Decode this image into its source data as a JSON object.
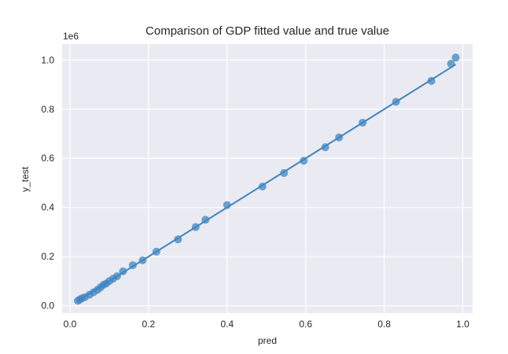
{
  "chart_data": {
    "type": "scatter",
    "title": "Comparison of GDP fitted value and true value",
    "xlabel": "pred",
    "ylabel": "y_test",
    "y_offset_label": "1e6",
    "xlim": [
      -0.02,
      1.025
    ],
    "ylim": [
      -0.03,
      1.065
    ],
    "xticks": [
      0.0,
      0.2,
      0.4,
      0.6,
      0.8,
      1.0
    ],
    "xtick_labels": [
      "0.0",
      "0.2",
      "0.4",
      "0.6",
      "0.8",
      "1.0"
    ],
    "yticks": [
      0.0,
      0.2,
      0.4,
      0.6,
      0.8,
      1.0
    ],
    "ytick_labels": [
      "0.0",
      "0.2",
      "0.4",
      "0.6",
      "0.8",
      "1.0"
    ],
    "grid": true,
    "style": {
      "plot_background": "#eaeaf2",
      "grid_color": "#ffffff",
      "marker_color": "#3e86c0",
      "line_color": "#3e86c0"
    },
    "points": [
      {
        "x": 0.02,
        "y": 0.02
      },
      {
        "x": 0.025,
        "y": 0.025
      },
      {
        "x": 0.03,
        "y": 0.03
      },
      {
        "x": 0.038,
        "y": 0.035
      },
      {
        "x": 0.05,
        "y": 0.045
      },
      {
        "x": 0.06,
        "y": 0.055
      },
      {
        "x": 0.07,
        "y": 0.065
      },
      {
        "x": 0.078,
        "y": 0.075
      },
      {
        "x": 0.085,
        "y": 0.085
      },
      {
        "x": 0.092,
        "y": 0.09
      },
      {
        "x": 0.1,
        "y": 0.1
      },
      {
        "x": 0.11,
        "y": 0.11
      },
      {
        "x": 0.12,
        "y": 0.12
      },
      {
        "x": 0.135,
        "y": 0.14
      },
      {
        "x": 0.16,
        "y": 0.165
      },
      {
        "x": 0.185,
        "y": 0.185
      },
      {
        "x": 0.22,
        "y": 0.22
      },
      {
        "x": 0.275,
        "y": 0.27
      },
      {
        "x": 0.32,
        "y": 0.32
      },
      {
        "x": 0.345,
        "y": 0.35
      },
      {
        "x": 0.4,
        "y": 0.41
      },
      {
        "x": 0.49,
        "y": 0.485
      },
      {
        "x": 0.545,
        "y": 0.54
      },
      {
        "x": 0.595,
        "y": 0.59
      },
      {
        "x": 0.65,
        "y": 0.645
      },
      {
        "x": 0.685,
        "y": 0.685
      },
      {
        "x": 0.745,
        "y": 0.745
      },
      {
        "x": 0.83,
        "y": 0.83
      },
      {
        "x": 0.92,
        "y": 0.915
      },
      {
        "x": 0.97,
        "y": 0.985
      },
      {
        "x": 0.982,
        "y": 1.01
      }
    ],
    "fit_line": {
      "x": [
        0.02,
        0.982
      ],
      "y": [
        0.02,
        0.982
      ]
    }
  }
}
